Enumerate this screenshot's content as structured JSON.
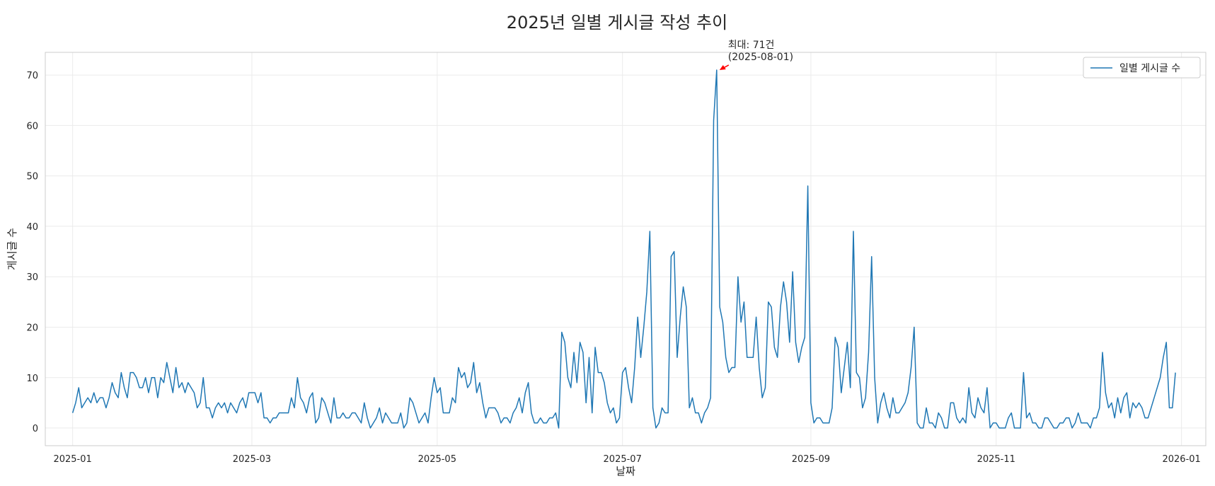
{
  "chart_data": {
    "type": "line",
    "title": "2025년 일별 게시글 작성 추이",
    "xlabel": "날짜",
    "ylabel": "게시글 수",
    "grid": true,
    "legend_position": "top-right",
    "x_start": "2025-01-01",
    "x_end": "2025-12-31",
    "xlim": [
      "2024-12-23",
      "2026-01-09"
    ],
    "ylim": [
      -3.5,
      74.5
    ],
    "x_ticks": [
      "2025-01",
      "2025-03",
      "2025-05",
      "2025-07",
      "2025-09",
      "2025-11",
      "2026-01"
    ],
    "y_ticks": [
      0,
      10,
      20,
      30,
      40,
      50,
      60,
      70
    ],
    "series": [
      {
        "name": "일별 게시글 수",
        "color": "#1f77b4",
        "values": [
          3,
          5,
          8,
          4,
          5,
          6,
          5,
          7,
          5,
          6,
          6,
          4,
          6,
          9,
          7,
          6,
          11,
          8,
          6,
          11,
          11,
          10,
          8,
          8,
          10,
          7,
          10,
          10,
          6,
          10,
          9,
          13,
          10,
          7,
          12,
          8,
          9,
          7,
          9,
          8,
          7,
          4,
          5,
          10,
          4,
          4,
          2,
          4,
          5,
          4,
          5,
          3,
          5,
          4,
          3,
          5,
          6,
          4,
          7,
          7,
          7,
          5,
          7,
          2,
          2,
          1,
          2,
          2,
          3,
          3,
          3,
          3,
          6,
          4,
          10,
          6,
          5,
          3,
          6,
          7,
          1,
          2,
          6,
          5,
          3,
          1,
          6,
          2,
          2,
          3,
          2,
          2,
          3,
          3,
          2,
          1,
          5,
          2,
          0,
          1,
          2,
          4,
          1,
          3,
          2,
          1,
          1,
          1,
          3,
          0,
          1,
          6,
          5,
          3,
          1,
          2,
          3,
          1,
          6,
          10,
          7,
          8,
          3,
          3,
          3,
          6,
          5,
          12,
          10,
          11,
          8,
          9,
          13,
          7,
          9,
          5,
          2,
          4,
          4,
          4,
          3,
          1,
          2,
          2,
          1,
          3,
          4,
          6,
          3,
          7,
          9,
          3,
          1,
          1,
          2,
          1,
          1,
          2,
          2,
          3,
          0,
          19,
          17,
          10,
          8,
          15,
          9,
          17,
          15,
          5,
          14,
          3,
          16,
          11,
          11,
          9,
          5,
          3,
          4,
          1,
          2,
          11,
          12,
          8,
          5,
          12,
          22,
          14,
          20,
          27,
          39,
          4,
          0,
          1,
          4,
          3,
          3,
          34,
          35,
          14,
          22,
          28,
          24,
          4,
          6,
          3,
          3,
          1,
          3,
          4,
          6,
          61,
          71,
          24,
          21,
          14,
          11,
          12,
          12,
          30,
          21,
          25,
          14,
          14,
          14,
          22,
          12,
          6,
          8,
          25,
          24,
          16,
          14,
          24,
          29,
          25,
          17,
          31,
          17,
          13,
          16,
          18,
          48,
          5,
          1,
          2,
          2,
          1,
          1,
          1,
          4,
          18,
          16,
          7,
          12,
          17,
          8,
          39,
          11,
          10,
          4,
          6,
          15,
          34,
          10,
          1,
          5,
          7,
          4,
          2,
          6,
          3,
          3,
          4,
          5,
          7,
          12,
          20,
          1,
          0,
          0,
          4,
          1,
          1,
          0,
          3,
          2,
          0,
          0,
          5,
          5,
          2,
          1,
          2,
          1,
          8,
          3,
          2,
          6,
          4,
          3,
          8,
          0,
          1,
          1,
          0,
          0,
          0,
          2,
          3,
          0,
          0,
          0,
          11,
          2,
          3,
          1,
          1,
          0,
          0,
          2,
          2,
          1,
          0,
          0,
          1,
          1,
          2,
          2,
          0,
          1,
          3,
          1,
          1,
          1,
          0,
          2,
          2,
          4,
          15,
          7,
          4,
          5,
          2,
          6,
          3,
          6,
          7,
          2,
          5,
          4,
          5,
          4,
          2,
          2,
          4,
          6,
          8,
          10,
          14,
          17,
          4,
          4,
          11
        ]
      }
    ],
    "annotation": {
      "line1": "최대: 71건",
      "line2": "(2025-08-01)",
      "x": "2025-08-01",
      "y": 71,
      "arrow_color": "#ff0000"
    }
  }
}
